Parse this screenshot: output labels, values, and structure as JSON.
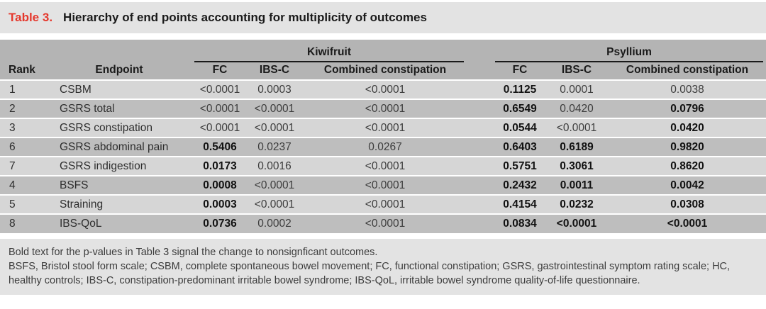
{
  "colors": {
    "accent_red": "#e5382d",
    "band_bg": "#e3e3e3",
    "header_bg": "#b4b4b4",
    "row_light": "#d6d6d6",
    "row_dark": "#bebebe",
    "rule_black": "#1a1a1a"
  },
  "title": {
    "label": "Table 3.",
    "text": "Hierarchy of end points accounting for multiplicity of outcomes"
  },
  "table": {
    "group_headers": [
      "Kiwifruit",
      "Psyllium"
    ],
    "rank_header": "Rank",
    "endpoint_header": "Endpoint",
    "sub_headers": [
      "FC",
      "IBS-C",
      "Combined constipation"
    ],
    "rows": [
      {
        "rank": "1",
        "endpoint": "CSBM",
        "values": [
          "<0.0001",
          "0.0003",
          "<0.0001",
          "0.1125",
          "0.0001",
          "0.0038"
        ],
        "bold": [
          false,
          false,
          false,
          true,
          false,
          false
        ]
      },
      {
        "rank": "2",
        "endpoint": "GSRS total",
        "values": [
          "<0.0001",
          "<0.0001",
          "<0.0001",
          "0.6549",
          "0.0420",
          "0.0796"
        ],
        "bold": [
          false,
          false,
          false,
          true,
          false,
          true
        ]
      },
      {
        "rank": "3",
        "endpoint": "GSRS constipation",
        "values": [
          "<0.0001",
          "<0.0001",
          "<0.0001",
          "0.0544",
          "<0.0001",
          "0.0420"
        ],
        "bold": [
          false,
          false,
          false,
          true,
          false,
          true
        ]
      },
      {
        "rank": "6",
        "endpoint": "GSRS abdominal pain",
        "values": [
          "0.5406",
          "0.0237",
          "0.0267",
          "0.6403",
          "0.6189",
          "0.9820"
        ],
        "bold": [
          true,
          false,
          false,
          true,
          true,
          true
        ]
      },
      {
        "rank": "7",
        "endpoint": "GSRS indigestion",
        "values": [
          "0.0173",
          "0.0016",
          "<0.0001",
          "0.5751",
          "0.3061",
          "0.8620"
        ],
        "bold": [
          true,
          false,
          false,
          true,
          true,
          true
        ]
      },
      {
        "rank": "4",
        "endpoint": "BSFS",
        "values": [
          "0.0008",
          "<0.0001",
          "<0.0001",
          "0.2432",
          "0.0011",
          "0.0042"
        ],
        "bold": [
          true,
          false,
          false,
          true,
          true,
          true
        ]
      },
      {
        "rank": "5",
        "endpoint": "Straining",
        "values": [
          "0.0003",
          "<0.0001",
          "<0.0001",
          "0.4154",
          "0.0232",
          "0.0308"
        ],
        "bold": [
          true,
          false,
          false,
          true,
          true,
          true
        ]
      },
      {
        "rank": "8",
        "endpoint": "IBS-QoL",
        "values": [
          "0.0736",
          "0.0002",
          "<0.0001",
          "0.0834",
          "<0.0001",
          "<0.0001"
        ],
        "bold": [
          true,
          false,
          false,
          true,
          true,
          true
        ]
      }
    ]
  },
  "footnotes": {
    "bold_note": "Bold text for the p-values in Table 3 signal the change to nonsignficant outcomes.",
    "abbreviations": "BSFS, Bristol stool form scale; CSBM, complete spontaneous bowel movement; FC, functional constipation; GSRS, gastrointestinal symptom rating scale; HC, healthy controls; IBS-C, constipation-predominant irritable bowel syndrome; IBS-QoL, irritable bowel syndrome quality-of-life questionnaire."
  }
}
